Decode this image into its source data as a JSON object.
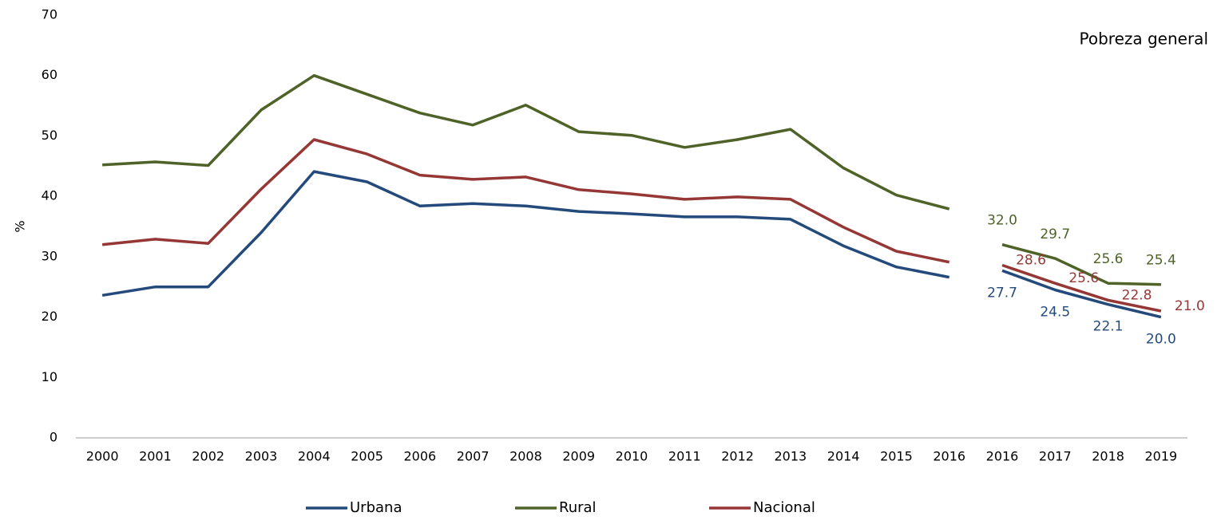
{
  "chart_data": {
    "type": "line",
    "title": "Pobreza general",
    "y_label": "%",
    "ylim": [
      0,
      70
    ],
    "yticks": [
      0,
      10,
      20,
      30,
      40,
      50,
      60,
      70
    ],
    "grid": false,
    "legend": "bottom",
    "series": [
      {
        "name": "Urbana",
        "color": "#244a7c"
      },
      {
        "name": "Rural",
        "color": "#4f6228"
      },
      {
        "name": "Nacional",
        "color": "#953735"
      }
    ],
    "periods": [
      {
        "categories": [
          "2000",
          "2001",
          "2002",
          "2003",
          "2004",
          "2005",
          "2006",
          "2007",
          "2008",
          "2009",
          "2010",
          "2011",
          "2012",
          "2013",
          "2014",
          "2015",
          "2016"
        ],
        "series": [
          {
            "values": [
              23.6,
              25.0,
              25.0,
              34.0,
              44.1,
              42.4,
              38.4,
              38.8,
              38.4,
              37.5,
              37.1,
              36.6,
              36.6,
              36.2,
              31.8,
              28.3,
              26.6
            ]
          },
          {
            "values": [
              45.2,
              45.7,
              45.1,
              54.3,
              60.0,
              56.9,
              53.8,
              51.8,
              55.1,
              50.7,
              50.1,
              48.1,
              49.4,
              51.1,
              44.7,
              40.2,
              37.9
            ]
          },
          {
            "values": [
              32.0,
              32.9,
              32.2,
              41.2,
              49.4,
              47.0,
              43.5,
              42.8,
              43.2,
              41.1,
              40.4,
              39.5,
              39.9,
              39.5,
              34.9,
              30.9,
              29.1
            ]
          }
        ]
      },
      {
        "categories": [
          "2016",
          "2017",
          "2018",
          "2019"
        ],
        "series": [
          {
            "values": [
              27.7,
              24.5,
              22.1,
              20.0
            ],
            "value_labels": [
              "27.7",
              "24.5",
              "22.1",
              "20.0"
            ]
          },
          {
            "values": [
              32.0,
              29.7,
              25.6,
              25.4
            ],
            "value_labels": [
              "32.0",
              "29.7",
              "25.6",
              "25.4"
            ]
          },
          {
            "values": [
              28.6,
              25.6,
              22.8,
              21.0
            ],
            "value_labels": [
              "28.6",
              "25.6",
              "22.8",
              "21.0"
            ]
          }
        ]
      }
    ]
  }
}
